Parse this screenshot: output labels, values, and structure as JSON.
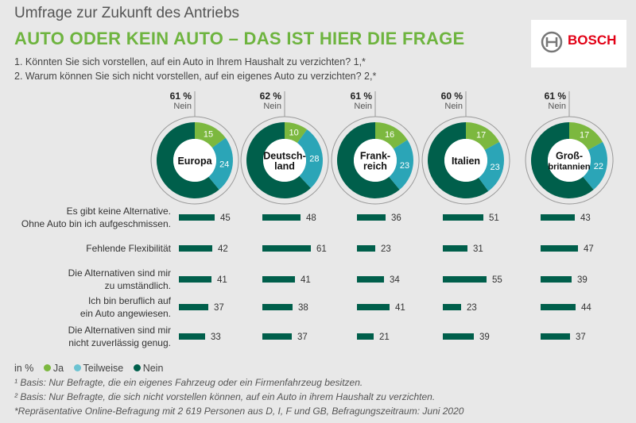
{
  "header": {
    "subtitle": "Umfrage zur Zukunft des Antriebs",
    "title": "AUTO ODER KEIN AUTO – DAS IST HIER DIE FRAGE",
    "q1": "1. Könnten Sie sich vorstellen, auf ein Auto in Ihrem Haushalt zu verzichten? 1,*",
    "q2": "2. Warum können Sie sich nicht vorstellen, auf ein eigenes Auto zu verzichten? 2,*"
  },
  "logo": {
    "text": "BOSCH"
  },
  "colors": {
    "ja": "#7cb83f",
    "teilweise": "#2ba5b7",
    "nein": "#005f4b",
    "bar": "#005f4b"
  },
  "legend": {
    "unit": "in %",
    "ja": "Ja",
    "teilweise": "Teilweise",
    "nein": "Nein"
  },
  "chart_data": [
    {
      "type": "pie",
      "series_names": [
        "Ja",
        "Teilweise",
        "Nein"
      ],
      "nein_label": "Nein",
      "countries": [
        {
          "name": [
            "Europa"
          ],
          "values": [
            15,
            24,
            61
          ],
          "headline": "61 %"
        },
        {
          "name": [
            "Deutsch-",
            "land"
          ],
          "values": [
            10,
            28,
            62
          ],
          "headline": "62 %"
        },
        {
          "name": [
            "Frank-",
            "reich"
          ],
          "values": [
            16,
            23,
            61
          ],
          "headline": "61 %"
        },
        {
          "name": [
            "Italien"
          ],
          "values": [
            17,
            23,
            60
          ],
          "headline": "60 %"
        },
        {
          "name": [
            "Groß-",
            "britannien"
          ],
          "values": [
            17,
            22,
            61
          ],
          "headline": "61 %"
        }
      ]
    },
    {
      "type": "bar",
      "categories": [
        "Es gibt keine Alternative.\nOhne Auto bin ich aufgeschmissen.",
        "Fehlende Flexibilität",
        "Die Alternativen sind mir\nzu umständlich.",
        "Ich bin beruflich auf\nein Auto angewiesen.",
        "Die Alternativen sind mir\nnicht zuverlässig genug."
      ],
      "series": [
        {
          "name": "Europa",
          "values": [
            45,
            42,
            41,
            37,
            33
          ]
        },
        {
          "name": "Deutschland",
          "values": [
            48,
            61,
            41,
            38,
            37
          ]
        },
        {
          "name": "Frankreich",
          "values": [
            36,
            23,
            34,
            41,
            21
          ]
        },
        {
          "name": "Italien",
          "values": [
            51,
            31,
            55,
            23,
            39
          ]
        },
        {
          "name": "Großbritannien",
          "values": [
            43,
            47,
            39,
            44,
            37
          ]
        }
      ]
    }
  ],
  "footnotes": [
    "¹ Basis: Nur Befragte, die ein eigenes Fahrzeug oder ein Firmenfahrzeug besitzen.",
    "² Basis: Nur Befragte, die sich nicht vorstellen können, auf ein Auto in ihrem Haushalt zu verzichten.",
    "*Repräsentative Online-Befragung mit 2 619 Personen aus D, I, F und GB, Befragungszeitraum: Juni 2020"
  ]
}
